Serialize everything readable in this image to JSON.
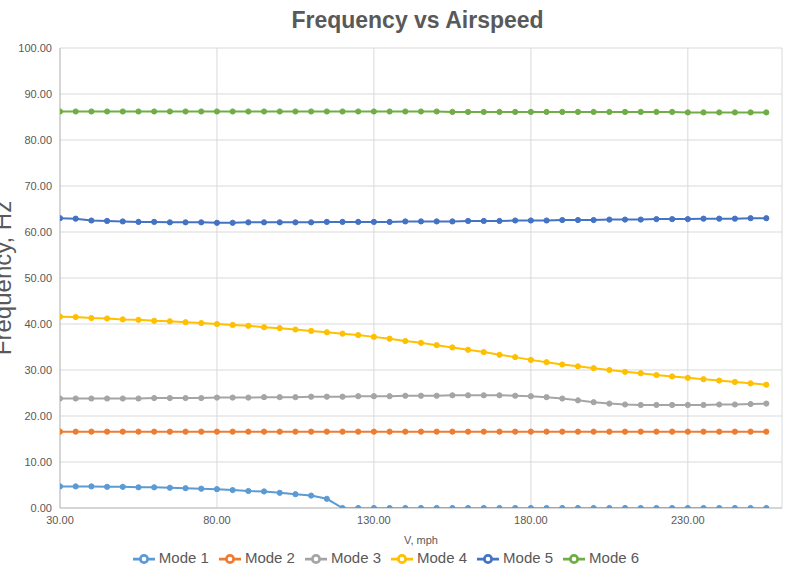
{
  "chart_data": {
    "type": "line",
    "title": "Frequency vs Airspeed",
    "x_label": "V, mph",
    "y_label": "Frequency, Hz",
    "x": [
      30,
      35,
      40,
      45,
      50,
      55,
      60,
      65,
      70,
      75,
      80,
      85,
      90,
      95,
      100,
      105,
      110,
      115,
      120,
      125,
      130,
      135,
      140,
      145,
      150,
      155,
      160,
      165,
      170,
      175,
      180,
      185,
      190,
      195,
      200,
      205,
      210,
      215,
      220,
      225,
      230,
      235,
      240,
      245,
      250,
      255
    ],
    "series": [
      {
        "name": "Mode 1",
        "color": "#5b9bd5",
        "marker": "circle",
        "values": [
          4.7,
          4.7,
          4.7,
          4.6,
          4.6,
          4.5,
          4.5,
          4.4,
          4.3,
          4.2,
          4.1,
          3.9,
          3.7,
          3.6,
          3.3,
          3.0,
          2.7,
          2.0,
          0,
          0,
          0,
          0,
          0,
          0,
          0,
          0,
          0,
          0,
          0,
          0,
          0,
          0,
          0,
          0,
          0,
          0,
          0,
          0,
          0,
          0,
          0,
          0,
          0,
          0,
          0,
          0
        ]
      },
      {
        "name": "Mode 2",
        "color": "#ed7d31",
        "marker": "circle",
        "values": [
          16.6,
          16.6,
          16.6,
          16.6,
          16.6,
          16.6,
          16.6,
          16.6,
          16.6,
          16.6,
          16.6,
          16.6,
          16.6,
          16.6,
          16.6,
          16.6,
          16.6,
          16.6,
          16.6,
          16.6,
          16.6,
          16.6,
          16.6,
          16.6,
          16.6,
          16.6,
          16.6,
          16.6,
          16.6,
          16.6,
          16.6,
          16.6,
          16.6,
          16.6,
          16.6,
          16.6,
          16.6,
          16.6,
          16.6,
          16.6,
          16.6,
          16.6,
          16.6,
          16.6,
          16.6,
          16.6
        ]
      },
      {
        "name": "Mode 3",
        "color": "#a5a5a5",
        "marker": "circle",
        "values": [
          23.8,
          23.8,
          23.8,
          23.8,
          23.8,
          23.8,
          23.9,
          23.9,
          23.9,
          23.9,
          24.0,
          24.0,
          24.0,
          24.1,
          24.1,
          24.1,
          24.2,
          24.2,
          24.2,
          24.3,
          24.3,
          24.3,
          24.4,
          24.4,
          24.4,
          24.5,
          24.5,
          24.5,
          24.5,
          24.4,
          24.3,
          24.1,
          23.8,
          23.4,
          23.0,
          22.7,
          22.5,
          22.4,
          22.4,
          22.4,
          22.4,
          22.4,
          22.5,
          22.5,
          22.6,
          22.7
        ]
      },
      {
        "name": "Mode 4",
        "color": "#ffc000",
        "marker": "circle",
        "values": [
          41.6,
          41.5,
          41.3,
          41.2,
          41.0,
          40.9,
          40.7,
          40.6,
          40.4,
          40.2,
          40.0,
          39.8,
          39.6,
          39.3,
          39.1,
          38.8,
          38.5,
          38.2,
          37.9,
          37.6,
          37.2,
          36.8,
          36.3,
          35.9,
          35.4,
          34.9,
          34.4,
          33.9,
          33.3,
          32.8,
          32.2,
          31.7,
          31.2,
          30.8,
          30.4,
          30.0,
          29.6,
          29.3,
          28.9,
          28.6,
          28.3,
          28.0,
          27.7,
          27.4,
          27.1,
          26.8
        ]
      },
      {
        "name": "Mode 5",
        "color": "#4472c4",
        "marker": "circle",
        "values": [
          63.0,
          62.9,
          62.5,
          62.4,
          62.3,
          62.2,
          62.2,
          62.1,
          62.1,
          62.1,
          62.0,
          62.0,
          62.1,
          62.1,
          62.1,
          62.1,
          62.1,
          62.2,
          62.2,
          62.2,
          62.2,
          62.2,
          62.3,
          62.3,
          62.3,
          62.3,
          62.4,
          62.4,
          62.4,
          62.5,
          62.5,
          62.5,
          62.6,
          62.6,
          62.6,
          62.7,
          62.7,
          62.7,
          62.8,
          62.8,
          62.8,
          62.9,
          62.9,
          62.9,
          63.0,
          63.0
        ]
      },
      {
        "name": "Mode 6",
        "color": "#70ad47",
        "marker": "circle",
        "values": [
          86.2,
          86.2,
          86.2,
          86.2,
          86.2,
          86.2,
          86.2,
          86.2,
          86.2,
          86.2,
          86.2,
          86.2,
          86.2,
          86.2,
          86.2,
          86.2,
          86.2,
          86.2,
          86.2,
          86.2,
          86.2,
          86.2,
          86.2,
          86.2,
          86.2,
          86.1,
          86.1,
          86.1,
          86.1,
          86.1,
          86.1,
          86.1,
          86.1,
          86.1,
          86.1,
          86.1,
          86.1,
          86.1,
          86.1,
          86.1,
          86.0,
          86.0,
          86.0,
          86.0,
          86.0,
          86.0
        ]
      }
    ],
    "xlim": [
      30,
      260
    ],
    "xticks": [
      {
        "value": 30,
        "label": "30.00"
      },
      {
        "value": 80,
        "label": "80.00"
      },
      {
        "value": 130,
        "label": "130.00"
      },
      {
        "value": 180,
        "label": "180.00"
      },
      {
        "value": 230,
        "label": "230.00"
      }
    ],
    "ylim": [
      0,
      100
    ],
    "yticks": [
      {
        "value": 0,
        "label": "0.00"
      },
      {
        "value": 10,
        "label": "10.00"
      },
      {
        "value": 20,
        "label": "20.00"
      },
      {
        "value": 30,
        "label": "30.00"
      },
      {
        "value": 40,
        "label": "40.00"
      },
      {
        "value": 50,
        "label": "50.00"
      },
      {
        "value": 60,
        "label": "60.00"
      },
      {
        "value": 70,
        "label": "70.00"
      },
      {
        "value": 80,
        "label": "80.00"
      },
      {
        "value": 90,
        "label": "90.00"
      },
      {
        "value": 100,
        "label": "100.00"
      }
    ],
    "grid": true,
    "legend": "bottom"
  }
}
